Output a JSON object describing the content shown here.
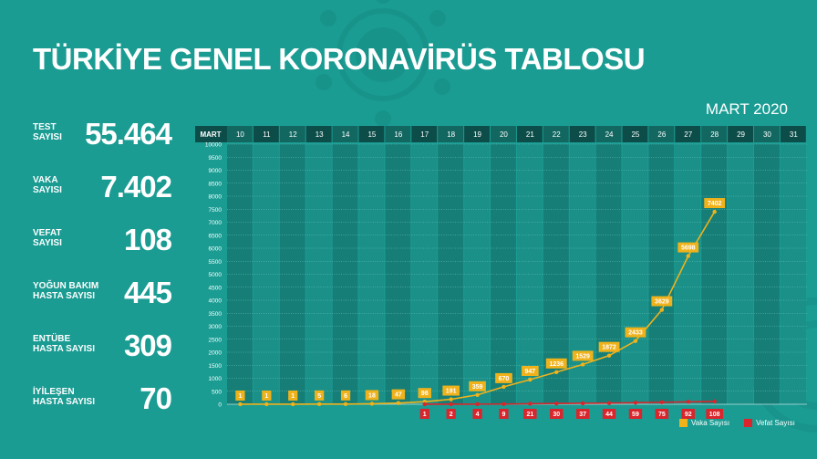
{
  "title": "TÜRKİYE GENEL KORONAVİRÜS TABLOSU",
  "month_label": "MART 2020",
  "stats": [
    {
      "label_lines": [
        "TEST",
        "SAYISI"
      ],
      "value": "55.464"
    },
    {
      "label_lines": [
        "VAKA",
        "SAYISI"
      ],
      "value": "7.402"
    },
    {
      "label_lines": [
        "VEFAT",
        "SAYISI"
      ],
      "value": "108"
    },
    {
      "label_lines": [
        "YOĞUN BAKIM",
        "HASTA SAYISI"
      ],
      "value": "445"
    },
    {
      "label_lines": [
        "ENTÜBE",
        "HASTA SAYISI"
      ],
      "value": "309"
    },
    {
      "label_lines": [
        "İYİLEŞEN",
        "HASTA SAYISI"
      ],
      "value": "70"
    }
  ],
  "colors": {
    "background": "#1a9c93",
    "header_a": "#0d4d49",
    "header_b": "#136761",
    "col_a": "#167e77",
    "col_b": "#1a9088",
    "vaka": "#f0b21b",
    "vefat": "#d9252b"
  },
  "chart_data": {
    "type": "line",
    "x_header_label": "MART",
    "x": [
      "10",
      "11",
      "12",
      "13",
      "14",
      "15",
      "16",
      "17",
      "18",
      "19",
      "20",
      "21",
      "22",
      "23",
      "24",
      "25",
      "26",
      "27",
      "28",
      "29",
      "30",
      "31"
    ],
    "ylim": [
      0,
      10000
    ],
    "yticks": [
      0,
      500,
      1000,
      1500,
      2000,
      2500,
      3000,
      3500,
      4000,
      4500,
      5000,
      5500,
      6000,
      6500,
      7000,
      7500,
      8000,
      8500,
      9000,
      9500,
      10000
    ],
    "grid": true,
    "legend": "bottom-right",
    "series": [
      {
        "name": "Vaka Sayısı",
        "color": "#f0b21b",
        "label_position": "above",
        "x": [
          "10",
          "11",
          "12",
          "13",
          "14",
          "15",
          "16",
          "17",
          "18",
          "19",
          "20",
          "21",
          "22",
          "23",
          "24",
          "25",
          "26",
          "27",
          "28"
        ],
        "values": [
          1,
          1,
          1,
          5,
          6,
          18,
          47,
          98,
          191,
          359,
          670,
          947,
          1236,
          1529,
          1872,
          2433,
          3629,
          5698,
          7402
        ]
      },
      {
        "name": "Vefat Sayısı",
        "color": "#d9252b",
        "label_position": "below",
        "x": [
          "17",
          "18",
          "19",
          "20",
          "21",
          "22",
          "23",
          "24",
          "25",
          "26",
          "27",
          "28"
        ],
        "values": [
          1,
          2,
          4,
          9,
          21,
          30,
          37,
          44,
          59,
          75,
          92,
          108
        ]
      }
    ]
  }
}
